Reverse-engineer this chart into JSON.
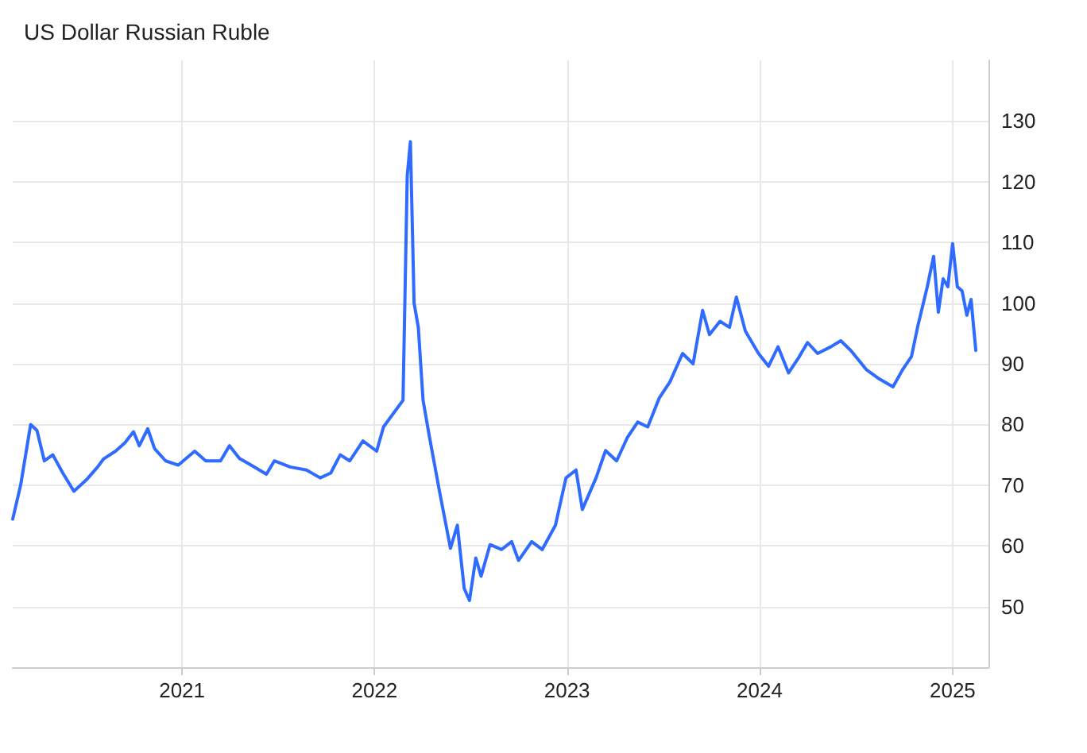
{
  "chart_data": {
    "type": "line",
    "title": "US Dollar Russian Ruble",
    "x": [
      "2020-02-15",
      "2020-03-01",
      "2020-03-20",
      "2020-04-01",
      "2020-04-15",
      "2020-05-01",
      "2020-05-20",
      "2020-06-10",
      "2020-07-05",
      "2020-07-25",
      "2020-08-05",
      "2020-08-28",
      "2020-09-15",
      "2020-10-01",
      "2020-10-12",
      "2020-10-28",
      "2020-11-10",
      "2020-12-01",
      "2020-12-25",
      "2021-01-25",
      "2021-02-15",
      "2021-03-15",
      "2021-04-01",
      "2021-04-20",
      "2021-05-10",
      "2021-06-10",
      "2021-06-25",
      "2021-07-25",
      "2021-08-25",
      "2021-09-20",
      "2021-10-10",
      "2021-10-28",
      "2021-11-15",
      "2021-12-10",
      "2022-01-05",
      "2022-01-18",
      "2022-02-24",
      "2022-03-04",
      "2022-03-10",
      "2022-03-17",
      "2022-03-25",
      "2022-04-03",
      "2022-04-15",
      "2022-05-05",
      "2022-05-25",
      "2022-06-07",
      "2022-06-20",
      "2022-06-30",
      "2022-07-12",
      "2022-07-22",
      "2022-08-08",
      "2022-08-30",
      "2022-09-18",
      "2022-10-01",
      "2022-10-26",
      "2022-11-15",
      "2022-12-10",
      "2022-12-30",
      "2023-01-18",
      "2023-01-30",
      "2023-02-25",
      "2023-03-15",
      "2023-04-05",
      "2023-04-25",
      "2023-05-15",
      "2023-06-03",
      "2023-06-25",
      "2023-07-15",
      "2023-08-08",
      "2023-08-28",
      "2023-09-15",
      "2023-09-28",
      "2023-10-18",
      "2023-11-05",
      "2023-11-18",
      "2023-12-05",
      "2023-12-30",
      "2024-01-18",
      "2024-02-05",
      "2024-02-25",
      "2024-03-15",
      "2024-04-01",
      "2024-04-20",
      "2024-05-15",
      "2024-06-03",
      "2024-06-22",
      "2024-07-22",
      "2024-08-15",
      "2024-09-10",
      "2024-09-28",
      "2024-10-15",
      "2024-10-27",
      "2024-11-14",
      "2024-11-26",
      "2024-12-05",
      "2024-12-14",
      "2024-12-23",
      "2025-01-01",
      "2025-01-10",
      "2025-01-19",
      "2025-01-28",
      "2025-02-05",
      "2025-02-14"
    ],
    "series": [
      {
        "color": "#2f6bff",
        "values": [
          64.4,
          70,
          80,
          79,
          74,
          75,
          72,
          69,
          71,
          73,
          74.3,
          75.6,
          77,
          78.8,
          76.5,
          79.3,
          76,
          74,
          73.3,
          75.6,
          74,
          74,
          76.5,
          74.4,
          73.4,
          71.8,
          74,
          73,
          72.5,
          71.2,
          72,
          75,
          74,
          77.3,
          75.6,
          79.6,
          84,
          121,
          126.6,
          100,
          96,
          84,
          78,
          68.6,
          59.6,
          63.4,
          53,
          51,
          58,
          55,
          60.2,
          59.4,
          60.7,
          57.6,
          60.7,
          59.4,
          63.4,
          71.2,
          72.5,
          66,
          71.2,
          75.7,
          74,
          77.8,
          80.4,
          79.6,
          84.4,
          87,
          91.7,
          90,
          98.8,
          94.8,
          97,
          96,
          101,
          95.4,
          91.7,
          89.6,
          92.8,
          88.5,
          91,
          93.5,
          91.7,
          92.8,
          93.8,
          92.2,
          89,
          87.5,
          86.2,
          89,
          91.2,
          96.2,
          102.7,
          107.7,
          98.5,
          104,
          102.7,
          109.8,
          102.7,
          102,
          98,
          100.6,
          92.2
        ]
      }
    ],
    "xlim": [
      "2020-02-15",
      "2025-03-10"
    ],
    "xticks": [
      "2021",
      "2022",
      "2023",
      "2024",
      "2025"
    ],
    "ylim": [
      40,
      140
    ],
    "yticks": [
      50,
      60,
      70,
      80,
      90,
      100,
      110,
      120,
      130
    ],
    "grid": true,
    "marker": "none",
    "line_style": "solid"
  }
}
